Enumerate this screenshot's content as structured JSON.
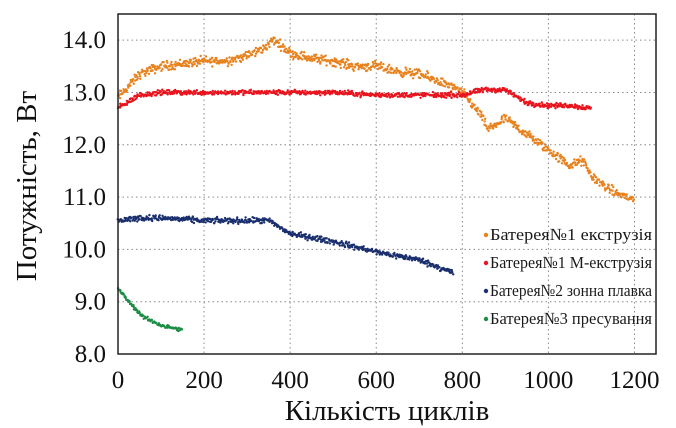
{
  "chart_data": {
    "type": "scatter",
    "xlabel": "Кількість циклів",
    "ylabel": "Потужність, Вт",
    "xlim": [
      0,
      1250
    ],
    "ylim": [
      8.0,
      14.5
    ],
    "x_ticks": [
      0,
      200,
      400,
      600,
      800,
      1000,
      1200
    ],
    "y_ticks": [
      "8.0",
      "9.0",
      "10.0",
      "11.0",
      "12.0",
      "13.0",
      "14.0"
    ],
    "grid": true,
    "legend_position": "right",
    "series": [
      {
        "name": "Батерея№1 екструзія",
        "color": "#e8821e",
        "x": [
          0,
          50,
          100,
          150,
          200,
          250,
          300,
          340,
          360,
          380,
          400,
          450,
          500,
          550,
          600,
          650,
          700,
          750,
          800,
          840,
          860,
          900,
          950,
          1000,
          1050,
          1080,
          1100,
          1150,
          1200
        ],
        "y": [
          12.9,
          13.35,
          13.5,
          13.55,
          13.6,
          13.6,
          13.7,
          13.85,
          14.0,
          13.9,
          13.75,
          13.65,
          13.6,
          13.5,
          13.5,
          13.4,
          13.35,
          13.2,
          13.0,
          12.6,
          12.3,
          12.5,
          12.2,
          11.9,
          11.6,
          11.7,
          11.4,
          11.1,
          10.95
        ],
        "spread": 0.13
      },
      {
        "name": "Батерея№1 М-екструзія",
        "color": "#e8141e",
        "x": [
          0,
          50,
          100,
          200,
          300,
          400,
          500,
          600,
          700,
          800,
          850,
          900,
          950,
          1000,
          1050,
          1100
        ],
        "y": [
          12.7,
          12.95,
          13.0,
          13.0,
          13.0,
          13.0,
          13.0,
          12.95,
          12.95,
          12.95,
          13.05,
          13.05,
          12.8,
          12.75,
          12.75,
          12.7
        ],
        "spread": 0.07
      },
      {
        "name": "Батерея№2 зонна плавка",
        "color": "#1a2f6e",
        "x": [
          0,
          50,
          100,
          200,
          300,
          350,
          400,
          500,
          600,
          700,
          780
        ],
        "y": [
          10.55,
          10.6,
          10.6,
          10.55,
          10.55,
          10.55,
          10.3,
          10.15,
          9.95,
          9.8,
          9.55
        ],
        "spread": 0.08
      },
      {
        "name": "Батерея№3 пресування",
        "color": "#1c8c45",
        "x": [
          0,
          30,
          60,
          100,
          150
        ],
        "y": [
          9.25,
          8.95,
          8.7,
          8.55,
          8.45
        ],
        "spread": 0.05
      }
    ]
  }
}
